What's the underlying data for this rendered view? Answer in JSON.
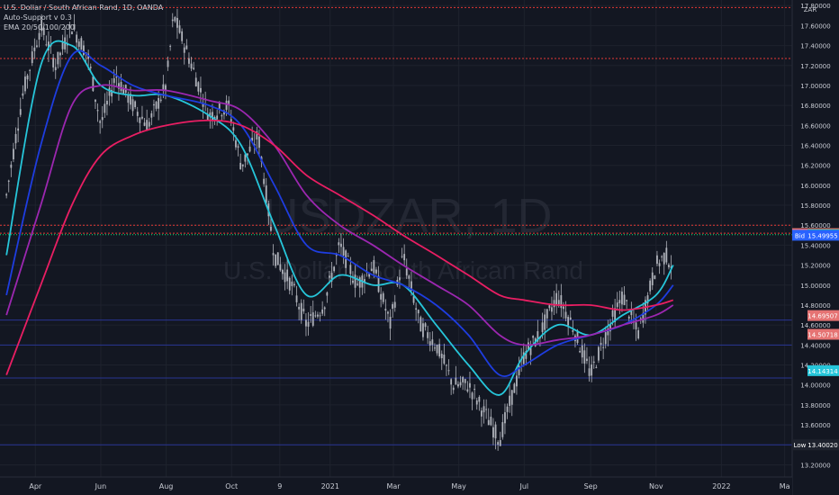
{
  "legend": {
    "title": "U.S. Dollar / South African Rand, 1D, OANDA",
    "indicator": "Auto-Support v 0.3",
    "ema": "EMA 20/50/100/200"
  },
  "watermark": {
    "symbol": "USDZAR, 1D",
    "description": "U.S. Dollar / South African Rand"
  },
  "price_axis": {
    "currency": "ZAR",
    "top_label": "17.80000"
  },
  "colors": {
    "background": "#131722",
    "candle": "#b0b3bb",
    "ema20": "#26c6da",
    "ema50": "#1e3de0",
    "ema100": "#9c27b0",
    "ema200": "#e91e63",
    "resistance": "#e53935",
    "support": "#283593",
    "ask": "#e57373",
    "bid": "#2962ff",
    "last": "#00e676",
    "low": "#1e222d"
  },
  "chart_data": {
    "type": "line",
    "title": "U.S. Dollar / South African Rand, 1D, OANDA",
    "x_tick_labels": [
      "Apr",
      "Jun",
      "Aug",
      "Oct",
      "9",
      "2021",
      "Mar",
      "May",
      "Jul",
      "Sep",
      "Nov",
      "2022",
      "Ma"
    ],
    "y_tick_labels": [
      "17.80000",
      "17.60000",
      "17.40000",
      "17.20000",
      "17.00000",
      "16.80000",
      "16.60000",
      "16.40000",
      "16.20000",
      "16.00000",
      "15.80000",
      "15.60000",
      "15.40000",
      "15.20000",
      "15.00000",
      "14.80000",
      "14.60000",
      "14.40000",
      "14.20000",
      "14.00000",
      "13.80000",
      "13.60000",
      "13.40000",
      "13.20000"
    ],
    "ylim": [
      13.15,
      17.82
    ],
    "series": [
      {
        "name": "Price",
        "x": [
          "2020-03-05",
          "2020-03-20",
          "2020-04-06",
          "2020-04-20",
          "2020-05-05",
          "2020-05-20",
          "2020-06-01",
          "2020-06-15",
          "2020-07-01",
          "2020-07-15",
          "2020-08-01",
          "2020-08-08",
          "2020-08-25",
          "2020-09-10",
          "2020-09-28",
          "2020-10-10",
          "2020-10-26",
          "2020-11-10",
          "2020-11-26",
          "2020-12-10",
          "2020-12-26",
          "2021-01-10",
          "2021-01-26",
          "2021-02-10",
          "2021-02-26",
          "2021-03-10",
          "2021-03-26",
          "2021-04-10",
          "2021-04-26",
          "2021-05-10",
          "2021-05-26",
          "2021-06-08",
          "2021-06-20",
          "2021-07-01",
          "2021-07-15",
          "2021-08-01",
          "2021-08-15",
          "2021-09-01",
          "2021-09-15",
          "2021-10-01",
          "2021-10-15",
          "2021-11-01",
          "2021-11-10",
          "2021-11-17"
        ],
        "values": [
          15.9,
          16.9,
          17.6,
          17.2,
          17.6,
          17.3,
          16.6,
          17.1,
          16.8,
          16.6,
          17.0,
          17.7,
          17.2,
          16.7,
          16.8,
          16.2,
          16.5,
          15.3,
          15.0,
          14.6,
          14.8,
          15.4,
          15.0,
          15.2,
          14.6,
          15.3,
          14.6,
          14.4,
          14.0,
          14.0,
          13.7,
          13.45,
          13.9,
          14.3,
          14.5,
          14.9,
          14.6,
          14.1,
          14.5,
          14.9,
          14.5,
          15.2,
          15.3,
          15.2
        ]
      },
      {
        "name": "EMA 20",
        "x": [
          "2020-03-05",
          "2020-04-06",
          "2020-05-05",
          "2020-06-01",
          "2020-07-01",
          "2020-08-01",
          "2020-09-10",
          "2020-10-10",
          "2020-11-10",
          "2020-12-10",
          "2021-01-10",
          "2021-02-10",
          "2021-03-10",
          "2021-04-10",
          "2021-05-10",
          "2021-06-08",
          "2021-07-01",
          "2021-08-01",
          "2021-09-01",
          "2021-10-01",
          "2021-11-01",
          "2021-11-17"
        ],
        "values": [
          15.3,
          17.2,
          17.4,
          17.0,
          16.9,
          16.9,
          16.7,
          16.4,
          15.6,
          14.9,
          15.1,
          15.0,
          15.0,
          14.6,
          14.2,
          13.9,
          14.3,
          14.6,
          14.5,
          14.7,
          14.9,
          15.2
        ]
      },
      {
        "name": "EMA 50",
        "x": [
          "2020-03-05",
          "2020-04-06",
          "2020-05-05",
          "2020-06-01",
          "2020-07-01",
          "2020-08-01",
          "2020-09-10",
          "2020-10-10",
          "2020-11-10",
          "2020-12-10",
          "2021-01-10",
          "2021-02-10",
          "2021-03-10",
          "2021-04-10",
          "2021-05-10",
          "2021-06-08",
          "2021-07-01",
          "2021-08-01",
          "2021-09-01",
          "2021-10-01",
          "2021-11-01",
          "2021-11-17"
        ],
        "values": [
          14.9,
          16.4,
          17.3,
          17.2,
          17.0,
          16.9,
          16.8,
          16.6,
          16.0,
          15.4,
          15.3,
          15.1,
          15.0,
          14.8,
          14.5,
          14.1,
          14.2,
          14.4,
          14.5,
          14.6,
          14.8,
          15.0
        ]
      },
      {
        "name": "EMA 100",
        "x": [
          "2020-03-05",
          "2020-04-06",
          "2020-05-05",
          "2020-06-01",
          "2020-07-01",
          "2020-08-01",
          "2020-09-10",
          "2020-10-10",
          "2020-11-10",
          "2020-12-10",
          "2021-01-10",
          "2021-02-10",
          "2021-03-10",
          "2021-04-10",
          "2021-05-10",
          "2021-06-08",
          "2021-07-01",
          "2021-08-01",
          "2021-09-01",
          "2021-10-01",
          "2021-11-01",
          "2021-11-17"
        ],
        "values": [
          14.7,
          15.8,
          16.8,
          17.0,
          16.95,
          16.95,
          16.85,
          16.75,
          16.4,
          15.9,
          15.6,
          15.4,
          15.2,
          15.0,
          14.8,
          14.5,
          14.4,
          14.45,
          14.5,
          14.6,
          14.7,
          14.8
        ]
      },
      {
        "name": "EMA 200",
        "x": [
          "2020-03-05",
          "2020-04-06",
          "2020-05-05",
          "2020-06-01",
          "2020-07-01",
          "2020-08-01",
          "2020-09-10",
          "2020-10-10",
          "2020-11-10",
          "2020-12-10",
          "2021-01-10",
          "2021-02-10",
          "2021-03-10",
          "2021-04-10",
          "2021-05-10",
          "2021-06-08",
          "2021-07-01",
          "2021-08-01",
          "2021-09-01",
          "2021-10-01",
          "2021-11-01",
          "2021-11-17"
        ],
        "values": [
          14.1,
          15.0,
          15.8,
          16.3,
          16.5,
          16.6,
          16.65,
          16.6,
          16.4,
          16.1,
          15.9,
          15.7,
          15.5,
          15.3,
          15.1,
          14.9,
          14.85,
          14.8,
          14.8,
          14.75,
          14.8,
          14.85
        ]
      }
    ],
    "horizontal_levels": {
      "resistance": [
        17.78,
        17.27,
        15.6,
        15.52
      ],
      "support": [
        14.65,
        14.4,
        14.07,
        13.4
      ]
    },
    "price_labels": [
      {
        "label": "Ask",
        "value": "15.51579"
      },
      {
        "label": "",
        "value": "15.50479"
      },
      {
        "label": "Bid",
        "value": "15.49955"
      },
      {
        "label": "",
        "value": "14.69507"
      },
      {
        "label": "",
        "value": "14.50718"
      },
      {
        "label": "",
        "value": "14.14314"
      },
      {
        "label": "Low",
        "value": "13.40020"
      }
    ],
    "grid": true,
    "legend_position": "top-left"
  }
}
